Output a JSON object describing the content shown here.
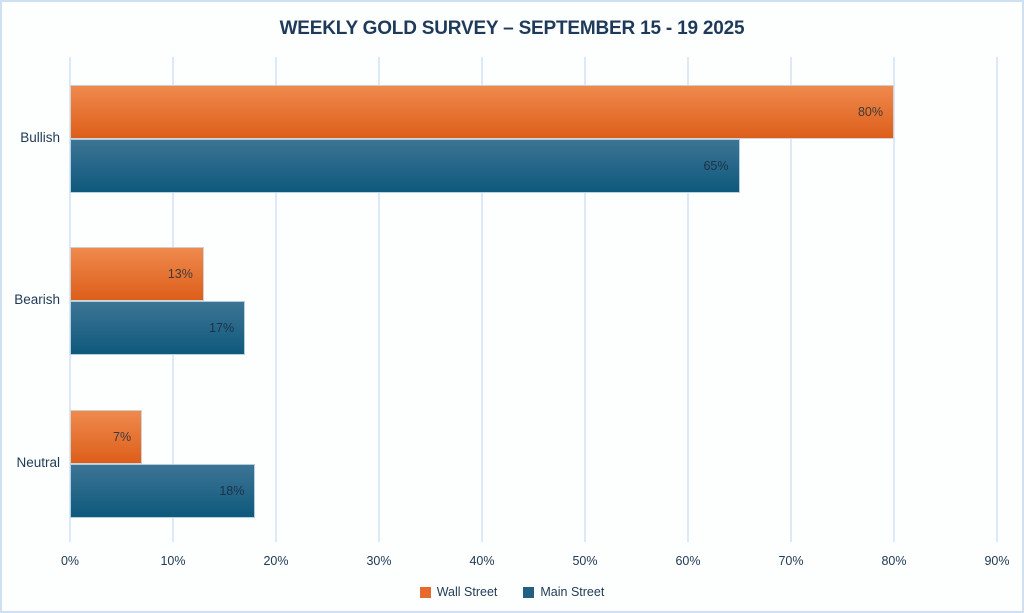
{
  "title": "WEEKLY GOLD SURVEY – SEPTEMBER 15  - 19 2025",
  "chart_data": {
    "type": "bar",
    "orientation": "horizontal",
    "title": "WEEKLY GOLD SURVEY – SEPTEMBER 15  - 19 2025",
    "categories": [
      "Bullish",
      "Bearish",
      "Neutral"
    ],
    "series": [
      {
        "name": "Wall Street",
        "values": [
          80,
          13,
          7
        ]
      },
      {
        "name": "Main Street",
        "values": [
          65,
          17,
          18
        ]
      }
    ],
    "value_suffix": "%",
    "xlim": [
      0,
      90
    ],
    "x_ticks": [
      "0%",
      "10%",
      "20%",
      "30%",
      "40%",
      "50%",
      "60%",
      "70%",
      "80%",
      "90%"
    ],
    "grid": "vertical",
    "legend_position": "bottom",
    "data_labels": "inside-end"
  },
  "colors": {
    "wall_street_top": "#ef8a4d",
    "wall_street_bottom": "#dd5e1a",
    "main_street_top": "#3d7495",
    "main_street_bottom": "#0e597c",
    "legend_wall_street": "#e66a2e",
    "legend_main_street": "#235f80",
    "grid": "#dce9f7",
    "title_text": "#1e3a5a",
    "axis_text": "#203a54",
    "label_on_wall_street": "#3b3b3b",
    "label_on_main_street": "#1e3146",
    "canvas_border": "#cfe0f2",
    "background": "#fdfefe"
  }
}
